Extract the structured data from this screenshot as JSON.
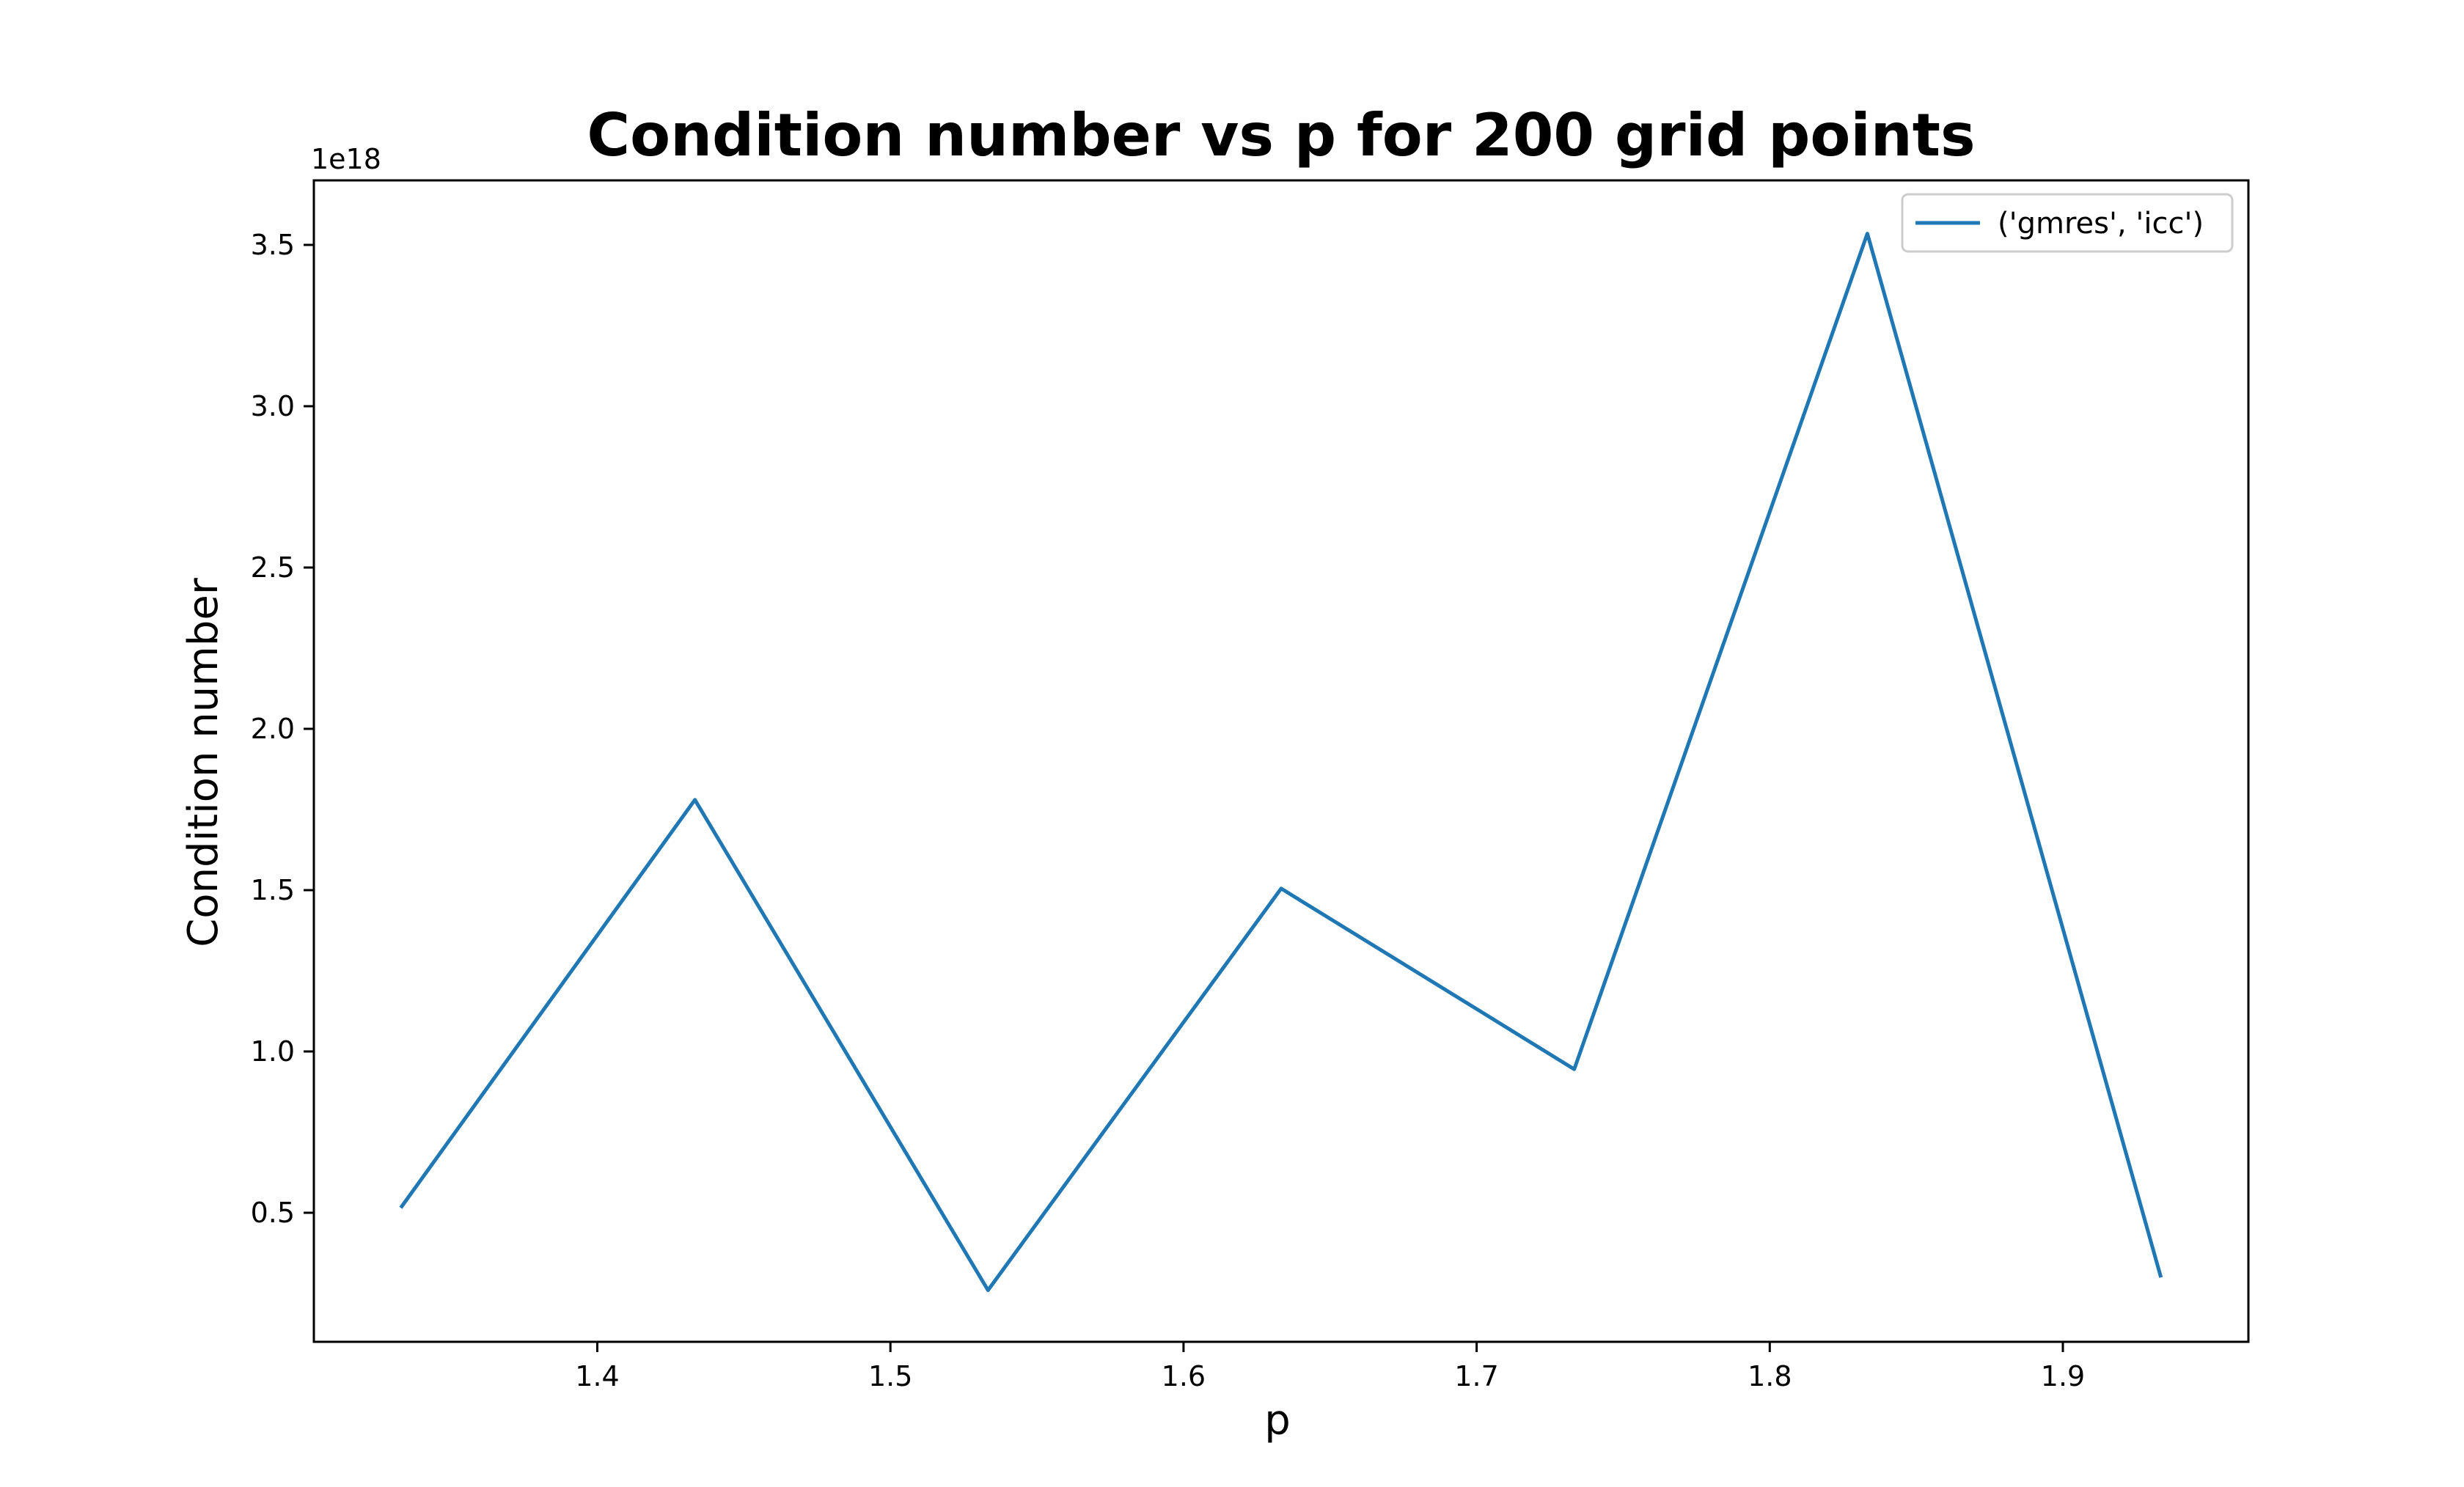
{
  "chart_data": {
    "type": "line",
    "title": "Condition number vs p for 200 grid points",
    "xlabel": "p",
    "ylabel": "Condition number",
    "y_offset_label": "1e18",
    "xlim": [
      1.3033,
      1.9633
    ],
    "ylim": [
      0.1,
      3.7
    ],
    "x_ticks": [
      1.4,
      1.5,
      1.6,
      1.7,
      1.8,
      1.9
    ],
    "x_tick_labels": [
      "1.4",
      "1.5",
      "1.6",
      "1.7",
      "1.8",
      "1.9"
    ],
    "y_ticks": [
      0.5,
      1.0,
      1.5,
      2.0,
      2.5,
      3.0,
      3.5
    ],
    "y_tick_labels": [
      "0.5",
      "1.0",
      "1.5",
      "2.0",
      "2.5",
      "3.0",
      "3.5"
    ],
    "grid": false,
    "legend_position": "top-right",
    "series": [
      {
        "name": "('gmres', 'icc')",
        "color": "#1f77b4",
        "x": [
          1.3333,
          1.4333,
          1.5333,
          1.6333,
          1.7333,
          1.8333,
          1.9333
        ],
        "y": [
          0.52,
          1.78,
          0.26,
          1.505,
          0.945,
          3.535,
          0.305
        ]
      }
    ]
  }
}
